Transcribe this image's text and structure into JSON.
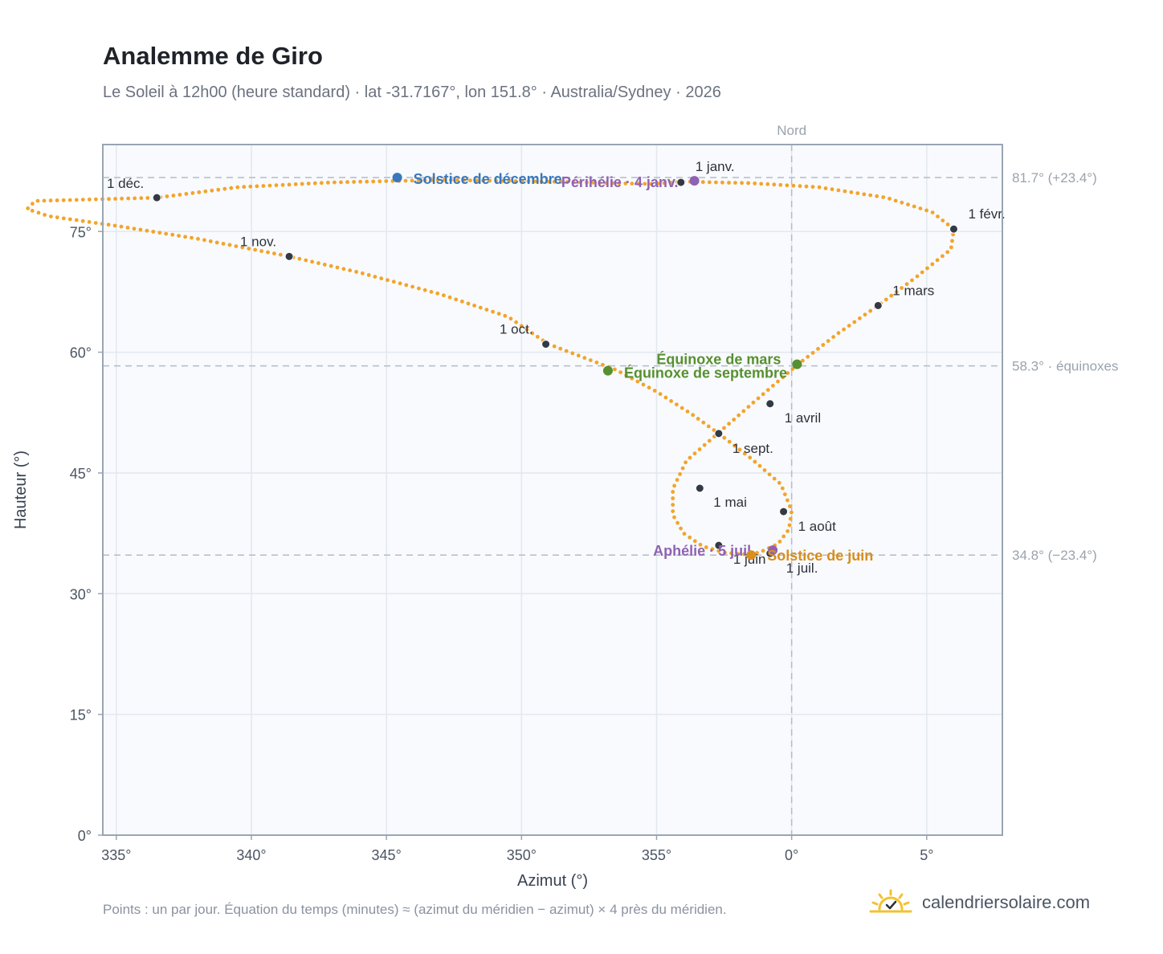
{
  "title": "Analemme de Giro",
  "subtitle": "Le Soleil à 12h00 (heure standard) · lat -31.7167°, lon 151.8° · Australia/Sydney · 2026",
  "footnote": "Points : un par jour. Équation du temps (minutes) ≈ (azimut du méridien − azimut) × 4 près du méridien.",
  "brand": {
    "text": "calendriersolaire.com",
    "icon": "sun-check-icon",
    "color": "#f2c230"
  },
  "colors": {
    "analemma": "#f3a42a",
    "month_dot": "#333a45",
    "december_solstice": "#3a78bc",
    "perihelion": "#8f62b3",
    "equinox": "#57902f",
    "june_solstice": "#d98e1d",
    "aphelion": "#8f62b3",
    "grid": "#e2e8ef",
    "plot_bg": "#f8fafd",
    "frame": "#9aa5b4",
    "reference_line": "#b3bcc7"
  },
  "chart_data": {
    "type": "scatter",
    "xlabel": "Azimut (°)",
    "ylabel": "Hauteur (°)",
    "xlim": [
      334.5,
      7.8
    ],
    "ylim": [
      0,
      85.8
    ],
    "x_ticks": [
      {
        "value": 335,
        "label": "335°"
      },
      {
        "value": 340,
        "label": "340°"
      },
      {
        "value": 345,
        "label": "345°"
      },
      {
        "value": 350,
        "label": "350°"
      },
      {
        "value": 355,
        "label": "355°"
      },
      {
        "value": 0,
        "label": "0°"
      },
      {
        "value": 5,
        "label": "5°"
      }
    ],
    "y_ticks": [
      {
        "value": 0,
        "label": "0°"
      },
      {
        "value": 15,
        "label": "15°"
      },
      {
        "value": 30,
        "label": "30°"
      },
      {
        "value": 45,
        "label": "45°"
      },
      {
        "value": 60,
        "label": "60°"
      },
      {
        "value": 75,
        "label": "75°"
      }
    ],
    "grid": true,
    "meridian": {
      "azimuth": 0,
      "label": "Nord"
    },
    "reference_lines": [
      {
        "altitude": 81.7,
        "label": "81.7° (+23.4°)"
      },
      {
        "altitude": 58.3,
        "label": "58.3° · équinoxes"
      },
      {
        "altitude": 34.8,
        "label": "34.8° (−23.4°)"
      }
    ],
    "series": [
      {
        "points": [
          [
            356.0,
            81.2
          ],
          [
            354.8,
            80.9
          ],
          [
            351.0,
            81.2
          ],
          [
            347.0,
            81.4
          ],
          [
            343.0,
            81.1
          ],
          [
            339.5,
            80.5
          ],
          [
            336.5,
            79.2
          ],
          [
            333.2,
            78.9
          ],
          [
            332.0,
            78.8
          ],
          [
            331.7,
            77.8
          ],
          [
            332.5,
            76.9
          ],
          [
            335.0,
            75.7
          ],
          [
            338.0,
            74.1
          ],
          [
            341.4,
            71.9
          ],
          [
            344.0,
            69.9
          ],
          [
            347.0,
            67.2
          ],
          [
            349.5,
            64.4
          ],
          [
            351.0,
            61.0
          ],
          [
            353.5,
            57.8
          ],
          [
            355.0,
            55.1
          ],
          [
            356.3,
            52.3
          ],
          [
            357.3,
            49.9
          ],
          [
            358.5,
            46.8
          ],
          [
            359.6,
            43.6
          ],
          [
            0.0,
            40.3
          ],
          [
            359.9,
            38.0
          ],
          [
            359.5,
            36.2
          ],
          [
            358.8,
            35.1
          ],
          [
            358.2,
            34.9
          ],
          [
            357.5,
            35.1
          ],
          [
            356.7,
            35.9
          ],
          [
            356.0,
            37.5
          ],
          [
            355.6,
            39.8
          ],
          [
            355.6,
            43.0
          ],
          [
            356.1,
            46.5
          ],
          [
            357.3,
            50.0
          ],
          [
            358.6,
            53.8
          ],
          [
            0.2,
            58.4
          ],
          [
            1.7,
            62.3
          ],
          [
            3.2,
            65.8
          ],
          [
            4.6,
            69.3
          ],
          [
            5.9,
            72.8
          ],
          [
            6.0,
            75.3
          ],
          [
            5.2,
            77.4
          ],
          [
            3.5,
            79.2
          ],
          [
            1.0,
            80.5
          ],
          [
            358.5,
            81.0
          ],
          [
            356.0,
            81.2
          ]
        ]
      }
    ],
    "month_markers": [
      {
        "label": "1 janv.",
        "x": 355.9,
        "y": 81.1
      },
      {
        "label": "1 févr.",
        "x": 6.0,
        "y": 75.3
      },
      {
        "label": "1 mars",
        "x": 3.2,
        "y": 65.8
      },
      {
        "label": "1 avril",
        "x": 359.2,
        "y": 53.6
      },
      {
        "label": "1 mai",
        "x": 356.6,
        "y": 43.1
      },
      {
        "label": "1 juin",
        "x": 357.3,
        "y": 36.0
      },
      {
        "label": "1 juil.",
        "x": 359.2,
        "y": 35.0
      },
      {
        "label": "1 août",
        "x": 359.7,
        "y": 40.2
      },
      {
        "label": "1 sept.",
        "x": 357.3,
        "y": 49.9
      },
      {
        "label": "1 oct.",
        "x": 350.9,
        "y": 61.0
      },
      {
        "label": "1 nov.",
        "x": 341.4,
        "y": 71.9
      },
      {
        "label": "1 déc.",
        "x": 336.5,
        "y": 79.2
      }
    ],
    "events": [
      {
        "label": "Solstice de décembre",
        "x": 345.4,
        "y": 81.7,
        "color_key": "december_solstice"
      },
      {
        "label": "Périhélie · 4 janv.",
        "x": 356.4,
        "y": 81.3,
        "color_key": "perihelion"
      },
      {
        "label": "Équinoxe de mars",
        "x": 0.2,
        "y": 58.5,
        "color_key": "equinox"
      },
      {
        "label": "Équinoxe de septembre",
        "x": 353.2,
        "y": 57.7,
        "color_key": "equinox"
      },
      {
        "label": "Aphélie · 5 juil.",
        "x": 359.3,
        "y": 35.4,
        "color_key": "aphelion"
      },
      {
        "label": "Solstice de juin",
        "x": 358.5,
        "y": 34.8,
        "color_key": "june_solstice"
      }
    ]
  }
}
